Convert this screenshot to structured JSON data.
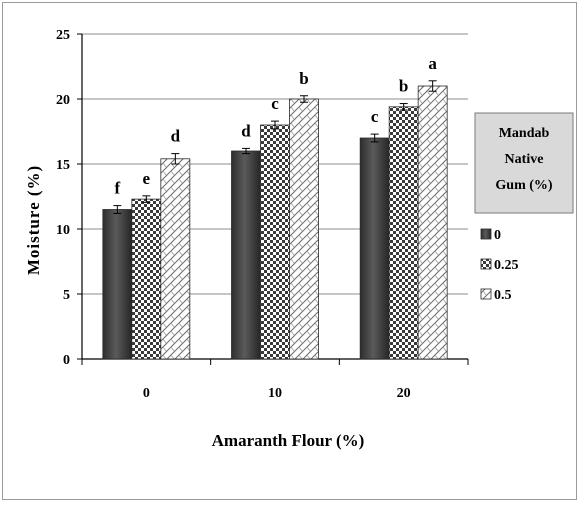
{
  "chart_data": {
    "type": "bar",
    "categories": [
      "0",
      "10",
      "20"
    ],
    "xlabel": "Amaranth Flour (%)",
    "ylabel": "Moisture  (%)",
    "ylim": [
      0,
      25
    ],
    "yticks": [
      0,
      5,
      10,
      15,
      20,
      25
    ],
    "grid": true,
    "legend_position": "right",
    "legend_title": [
      "Mandab",
      "Native",
      "Gum (%)"
    ],
    "series": [
      {
        "name": "0",
        "values": [
          11.5,
          16.0,
          17.0
        ],
        "errors": [
          0.3,
          0.2,
          0.3
        ],
        "letters": [
          "f",
          "d",
          "c"
        ],
        "fill": "solid-dark",
        "color": "#3a3a3a"
      },
      {
        "name": "0.25",
        "values": [
          12.3,
          18.0,
          19.4
        ],
        "errors": [
          0.25,
          0.3,
          0.25
        ],
        "letters": [
          "e",
          "c",
          "b"
        ],
        "fill": "checker",
        "color": "#2a2a2a"
      },
      {
        "name": "0.5",
        "values": [
          15.4,
          20.0,
          21.0
        ],
        "errors": [
          0.4,
          0.25,
          0.4
        ],
        "letters": [
          "d",
          "b",
          "a"
        ],
        "fill": "diagonal",
        "color": "#555555"
      }
    ]
  }
}
